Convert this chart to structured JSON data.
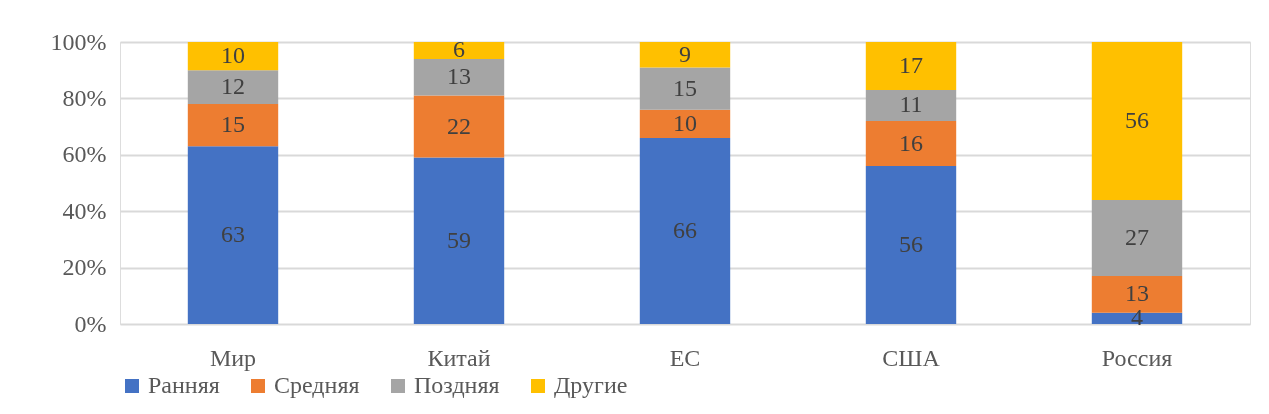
{
  "chart_data": {
    "type": "bar",
    "stacked": true,
    "categories": [
      "Мир",
      "Китай",
      "ЕС",
      "США",
      "Россия"
    ],
    "series": [
      {
        "name": "Ранняя",
        "color": "#4472c4",
        "values": [
          63,
          59,
          66,
          56,
          4
        ]
      },
      {
        "name": "Средняя",
        "color": "#ed7d31",
        "values": [
          15,
          22,
          10,
          16,
          13
        ]
      },
      {
        "name": "Поздняя",
        "color": "#a5a5a5",
        "values": [
          12,
          13,
          15,
          11,
          27
        ]
      },
      {
        "name": "Другие",
        "color": "#ffc000",
        "values": [
          10,
          6,
          9,
          17,
          56
        ]
      }
    ],
    "ylim": [
      0,
      100
    ],
    "yticks": [
      {
        "value": 0,
        "label": "0%"
      },
      {
        "value": 20,
        "label": "20%"
      },
      {
        "value": 40,
        "label": "40%"
      },
      {
        "value": 60,
        "label": "60%"
      },
      {
        "value": 80,
        "label": "80%"
      },
      {
        "value": 100,
        "label": "100%"
      }
    ],
    "grid": "y",
    "legend": "bottom",
    "data_labels": true
  }
}
